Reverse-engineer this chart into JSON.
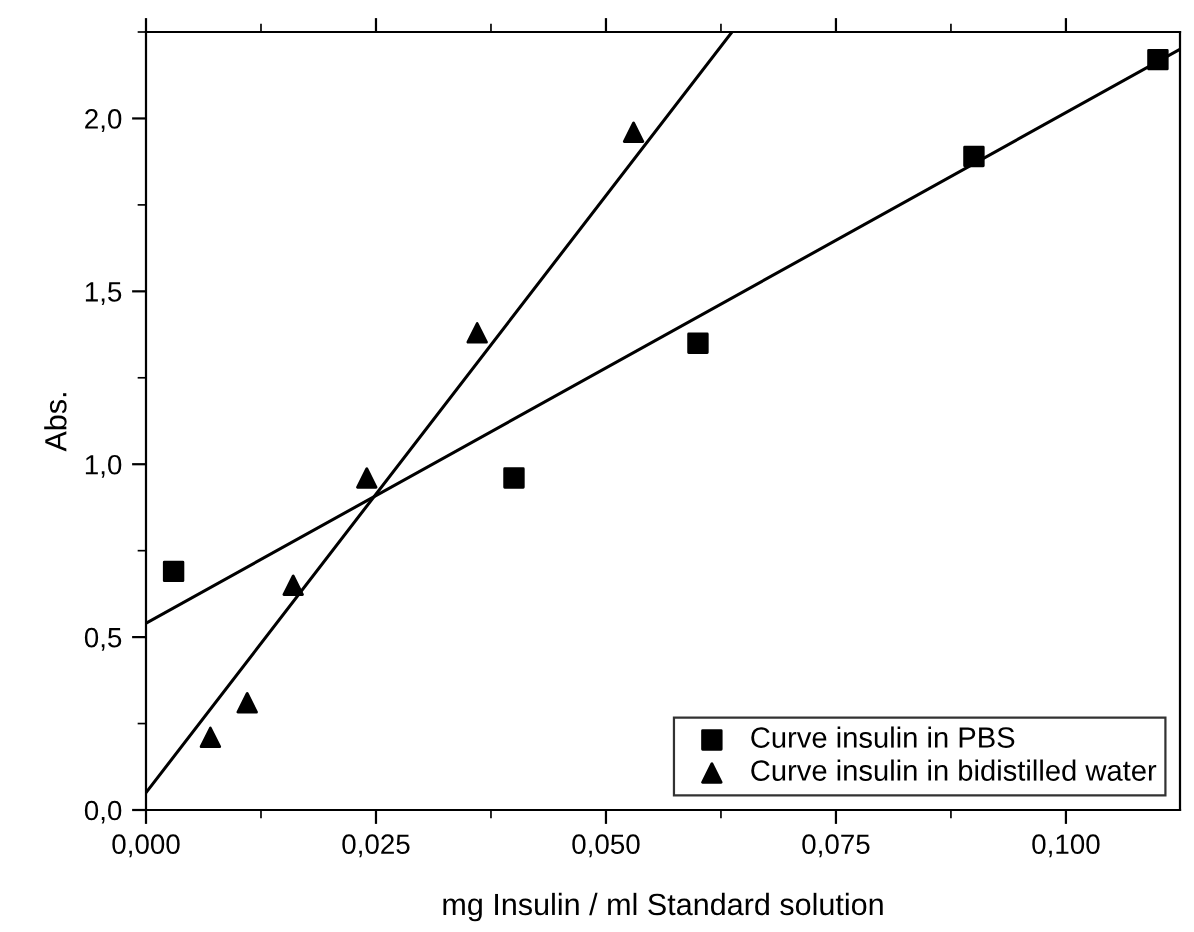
{
  "chart_data": {
    "type": "scatter",
    "xlabel": "mg Insulin / ml Standard solution",
    "ylabel": "Abs.",
    "xlim": [
      0,
      0.1124
    ],
    "ylim": [
      0,
      2.25
    ],
    "xticks": [
      {
        "value": 0,
        "label": "0,000"
      },
      {
        "value": 0.025,
        "label": "0,025"
      },
      {
        "value": 0.05,
        "label": "0,050"
      },
      {
        "value": 0.075,
        "label": "0,075"
      },
      {
        "value": 0.1,
        "label": "0,100"
      }
    ],
    "yticks": [
      {
        "value": 0,
        "label": "0,0"
      },
      {
        "value": 0.5,
        "label": "0,5"
      },
      {
        "value": 1.0,
        "label": "1,0"
      },
      {
        "value": 1.5,
        "label": "1,5"
      },
      {
        "value": 2.0,
        "label": "2,0"
      }
    ],
    "legend": "bottom right",
    "grid": false,
    "series": [
      {
        "name": "Curve insulin in PBS",
        "marker": "square",
        "color": "#000000",
        "x": [
          0.003,
          0.04,
          0.06,
          0.09,
          0.11
        ],
        "values": [
          0.69,
          0.96,
          1.35,
          1.89,
          2.17
        ]
      },
      {
        "name": "Curve insulin in bidistilled water",
        "marker": "triangle",
        "color": "#000000",
        "x": [
          0.007,
          0.011,
          0.016,
          0.024,
          0.036,
          0.053
        ],
        "values": [
          0.21,
          0.31,
          0.65,
          0.96,
          1.38,
          1.96
        ]
      },
      {
        "type": "line",
        "marker": "none",
        "line_style": "solid",
        "color": "#000000",
        "x": [
          0,
          0.1124
        ],
        "values": [
          0.54,
          2.2
        ]
      },
      {
        "type": "line",
        "marker": "none",
        "line_style": "solid",
        "color": "#000000",
        "x": [
          0,
          0.0637
        ],
        "values": [
          0.05,
          2.25
        ]
      }
    ]
  }
}
